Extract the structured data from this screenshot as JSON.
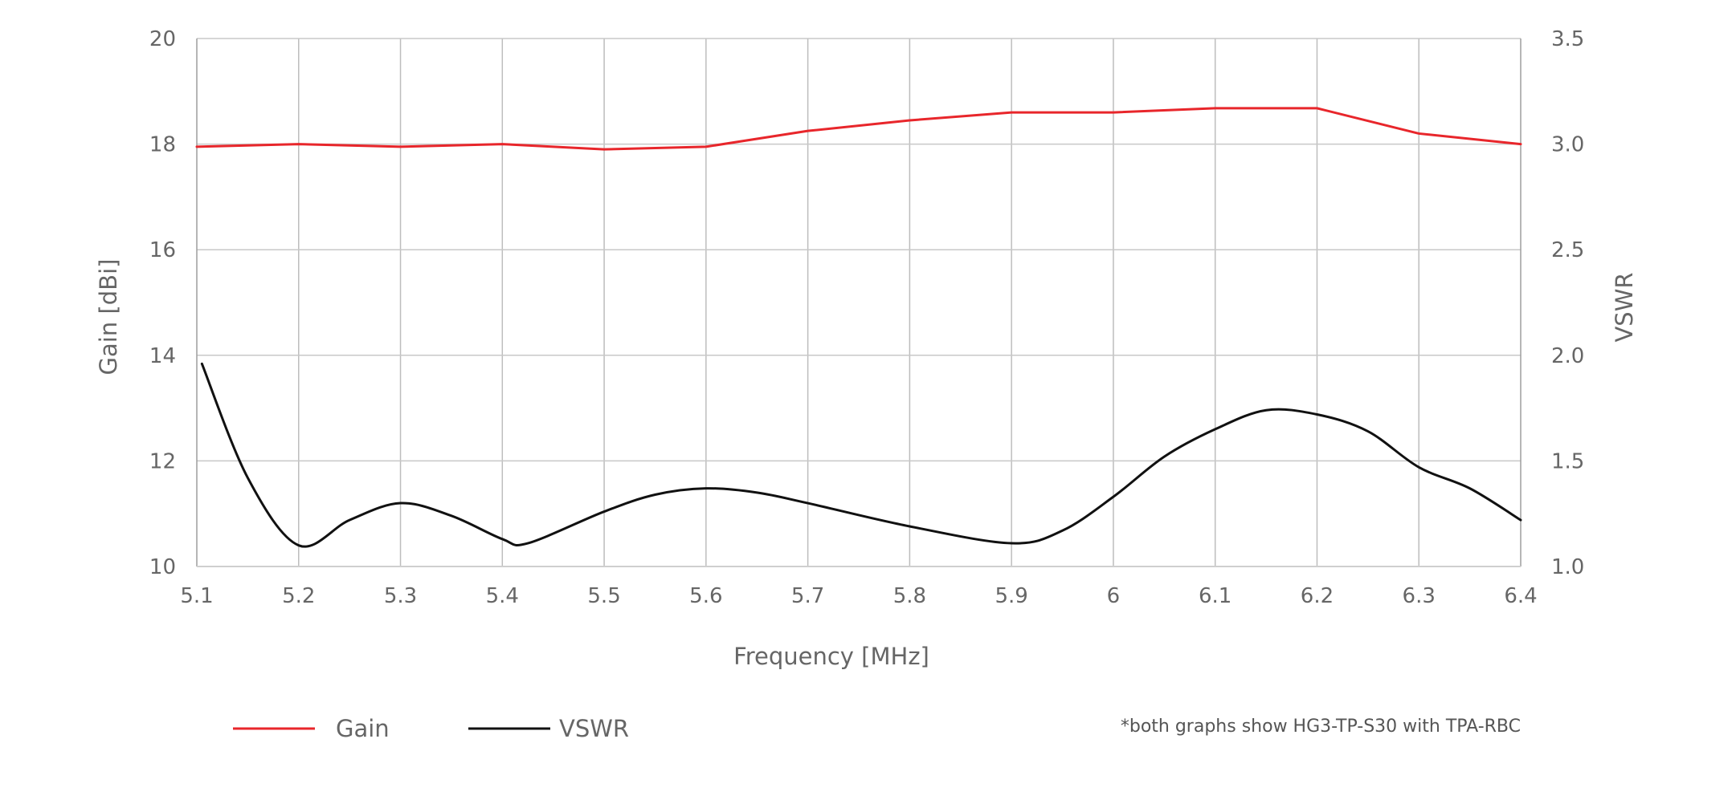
{
  "chart_data": {
    "type": "line",
    "xlabel": "Frequency [MHz]",
    "ylabel": "Gain [dBi]",
    "y2label": "VSWR",
    "xlim": [
      5.1,
      6.4
    ],
    "ylim": [
      10,
      20
    ],
    "y2lim": [
      1.0,
      3.5
    ],
    "x_ticks": [
      "5.1",
      "5.2",
      "5.3",
      "5.4",
      "5.5",
      "5.6",
      "5.7",
      "5.8",
      "5.9",
      "6",
      "6.1",
      "6.2",
      "6.3",
      "6.4"
    ],
    "y_ticks": [
      "10",
      "12",
      "14",
      "16",
      "18",
      "20"
    ],
    "y2_ticks": [
      "1.0",
      "1.5",
      "2.0",
      "2.5",
      "3.0",
      "3.5"
    ],
    "grid": true,
    "legend_position": "bottom-left",
    "series": [
      {
        "name": "Gain",
        "axis": "left",
        "color": "#e8262b",
        "x": [
          5.1,
          5.2,
          5.3,
          5.4,
          5.5,
          5.6,
          5.7,
          5.8,
          5.9,
          6.0,
          6.1,
          6.2,
          6.3,
          6.4
        ],
        "values": [
          17.95,
          18.0,
          17.95,
          18.0,
          17.9,
          17.95,
          18.25,
          18.45,
          18.6,
          18.6,
          18.68,
          18.68,
          18.2,
          18.0
        ]
      },
      {
        "name": "VSWR",
        "axis": "right",
        "color": "#111111",
        "x": [
          5.105,
          5.15,
          5.2,
          5.25,
          5.3,
          5.35,
          5.4,
          5.425,
          5.5,
          5.55,
          5.6,
          5.65,
          5.7,
          5.8,
          5.9,
          5.95,
          6.0,
          6.05,
          6.1,
          6.15,
          6.2,
          6.25,
          6.3,
          6.35,
          6.4
        ],
        "values": [
          1.96,
          1.42,
          1.1,
          1.22,
          1.3,
          1.24,
          1.13,
          1.11,
          1.26,
          1.34,
          1.37,
          1.35,
          1.3,
          1.19,
          1.11,
          1.17,
          1.33,
          1.52,
          1.65,
          1.74,
          1.72,
          1.64,
          1.47,
          1.37,
          1.22
        ]
      }
    ],
    "annotations": [
      "*both graphs show HG3-TP-S30 with TPA-RBC"
    ]
  }
}
